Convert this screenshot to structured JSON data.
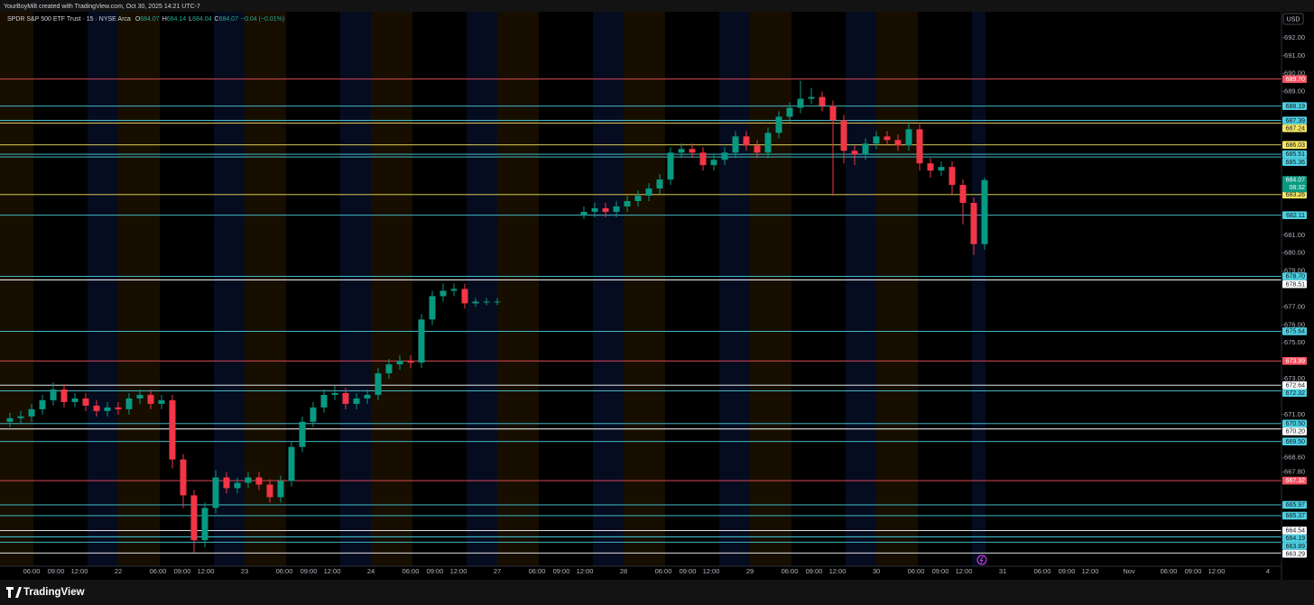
{
  "header": {
    "attribution": "YourBoyMilt created with TradingView.com, Oct 30, 2025 14:21 UTC-7",
    "symbol": "SPDR S&P 500 ETF Trust · 15 · NYSE Arca",
    "quote": [
      {
        "key": "O",
        "value": "684.07"
      },
      {
        "key": "H",
        "value": "684.14"
      },
      {
        "key": "L",
        "value": "684.04"
      },
      {
        "key": "C",
        "value": "684.07"
      }
    ],
    "change": "−0.04 (−0.01%)",
    "currency": "USD"
  },
  "footer": {
    "brand": "TradingView"
  },
  "chart_data": {
    "type": "candlestick",
    "open": [
      670.6,
      670.8,
      670.9,
      671.3,
      671.8,
      672.4,
      671.7,
      671.9,
      671.5,
      671.2,
      671.4,
      671.3,
      671.9,
      672.1,
      671.6,
      671.8,
      668.5,
      666.5,
      664.0,
      665.8,
      667.5,
      666.9,
      667.2,
      667.5,
      667.1,
      666.4,
      667.3,
      669.2,
      670.6,
      671.4,
      672.1,
      672.2,
      671.6,
      671.9,
      672.1,
      673.3,
      673.8,
      674.0,
      673.9,
      676.3,
      677.6,
      677.9,
      678.0,
      677.2,
      677.3,
      677.3,
      null,
      null,
      null,
      null,
      null,
      null,
      null,
      682.1,
      682.3,
      682.5,
      682.3,
      682.6,
      682.9,
      683.2,
      683.6,
      684.1,
      685.6,
      685.8,
      685.6,
      684.9,
      685.2,
      685.6,
      686.5,
      686.0,
      685.6,
      686.7,
      687.6,
      688.1,
      688.6,
      688.7,
      688.2,
      687.4,
      685.7,
      685.5,
      686.1,
      686.5,
      686.3,
      686.0,
      686.9,
      685.0,
      684.6,
      684.8,
      683.8,
      682.8,
      680.5
    ],
    "high": [
      671.1,
      671.2,
      671.6,
      672.1,
      672.8,
      672.7,
      672.2,
      672.2,
      671.8,
      671.7,
      671.7,
      672.2,
      672.4,
      672.4,
      672.1,
      672.1,
      668.8,
      666.8,
      666.1,
      667.9,
      667.8,
      667.5,
      667.8,
      667.8,
      667.4,
      667.6,
      669.5,
      670.9,
      671.7,
      672.4,
      672.6,
      672.5,
      672.2,
      672.4,
      673.6,
      674.1,
      674.3,
      674.3,
      676.6,
      677.9,
      678.3,
      678.3,
      678.3,
      677.5,
      677.5,
      677.5,
      null,
      null,
      null,
      null,
      null,
      null,
      null,
      682.6,
      682.8,
      682.8,
      682.9,
      683.2,
      683.5,
      683.9,
      684.4,
      685.9,
      686.1,
      686.1,
      685.9,
      685.5,
      685.9,
      686.8,
      686.8,
      686.3,
      687.0,
      687.9,
      688.4,
      689.6,
      689.2,
      689.0,
      688.5,
      687.7,
      686.0,
      686.4,
      686.8,
      686.8,
      686.6,
      687.3,
      687.2,
      685.3,
      685.1,
      685.1,
      684.1,
      683.1,
      684.2
    ],
    "low": [
      670.3,
      670.5,
      670.6,
      671.0,
      671.5,
      671.4,
      671.4,
      671.2,
      670.9,
      670.9,
      671.0,
      671.0,
      671.6,
      671.3,
      671.3,
      668.0,
      665.8,
      663.3,
      663.6,
      665.5,
      666.6,
      666.6,
      666.9,
      666.8,
      666.1,
      666.1,
      667.0,
      668.9,
      670.3,
      671.1,
      671.8,
      671.3,
      671.3,
      671.6,
      671.8,
      673.0,
      673.5,
      673.6,
      673.6,
      676.0,
      677.3,
      677.6,
      676.9,
      677.0,
      677.1,
      677.1,
      null,
      null,
      null,
      null,
      null,
      null,
      null,
      681.9,
      682.0,
      682.0,
      682.0,
      682.3,
      682.6,
      682.9,
      683.3,
      683.8,
      685.3,
      685.3,
      684.6,
      684.6,
      684.9,
      685.3,
      685.7,
      685.3,
      685.3,
      686.4,
      687.3,
      687.8,
      688.3,
      687.9,
      683.2,
      685.0,
      684.9,
      685.2,
      685.8,
      686.0,
      685.7,
      685.7,
      684.6,
      684.2,
      684.3,
      683.3,
      681.6,
      679.9,
      680.2
    ],
    "close": [
      670.8,
      670.9,
      671.3,
      671.8,
      672.4,
      671.7,
      671.9,
      671.5,
      671.2,
      671.4,
      671.3,
      671.9,
      672.1,
      671.6,
      671.8,
      668.5,
      666.5,
      664.0,
      665.8,
      667.5,
      666.9,
      667.2,
      667.5,
      667.1,
      666.4,
      667.3,
      669.2,
      670.6,
      671.4,
      672.1,
      672.2,
      671.6,
      671.9,
      672.1,
      673.3,
      673.8,
      674.0,
      673.9,
      676.3,
      677.6,
      677.9,
      678.0,
      677.2,
      677.3,
      677.3,
      677.3,
      null,
      null,
      null,
      null,
      null,
      null,
      null,
      682.3,
      682.5,
      682.3,
      682.6,
      682.9,
      683.2,
      683.6,
      684.1,
      685.6,
      685.8,
      685.6,
      684.9,
      685.2,
      685.6,
      686.5,
      686.0,
      685.6,
      686.7,
      687.6,
      688.1,
      688.6,
      688.7,
      688.2,
      687.4,
      685.7,
      685.5,
      686.1,
      686.5,
      686.3,
      686.0,
      686.9,
      685.0,
      684.6,
      684.8,
      683.8,
      682.8,
      680.5,
      684.07
    ],
    "x_labels": [
      "06:00",
      "09:00",
      "12:00",
      "22",
      "06:00",
      "09:00",
      "12:00",
      "23",
      "06:00",
      "09:00",
      "12:00",
      "24",
      "06:00",
      "09:00",
      "12:00",
      "27",
      "06:00",
      "09:00",
      "12:00",
      "28",
      "06:00",
      "09:00",
      "12:00",
      "29",
      "06:00",
      "09:00",
      "12:00",
      "30",
      "06:00",
      "09:00",
      "12:00",
      "31",
      "06:00",
      "09:00",
      "12:00",
      "Nov",
      "06:00",
      "09:00",
      "12:00",
      "4"
    ],
    "ylim": [
      662.3,
      693.4
    ],
    "yticks": [
      {
        "value": 692,
        "label": "692.00"
      },
      {
        "value": 691,
        "label": "691.00"
      },
      {
        "value": 690,
        "label": "690.00"
      },
      {
        "value": 689,
        "label": "689.00"
      },
      {
        "value": 681,
        "label": "681.00"
      },
      {
        "value": 680,
        "label": "680.00"
      },
      {
        "value": 679,
        "label": "679.00"
      },
      {
        "value": 677,
        "label": "677.00"
      },
      {
        "value": 676,
        "label": "676.00"
      },
      {
        "value": 675,
        "label": "675.00"
      },
      {
        "value": 673,
        "label": "673.00"
      },
      {
        "value": 671,
        "label": "671.00"
      },
      {
        "value": 668.6,
        "label": "668.60"
      },
      {
        "value": 667.8,
        "label": "667.80"
      }
    ],
    "up_color": "#089981",
    "down_color": "#f23645",
    "levels": [
      {
        "value": 689.7,
        "label": "689.70",
        "color": "#f7525f"
      },
      {
        "value": 688.19,
        "label": "688.19",
        "color": "#4dd0e1"
      },
      {
        "value": 687.39,
        "label": "687.39",
        "color": "#4dd0e1"
      },
      {
        "value": 687.24,
        "label": "687.24",
        "color": "#f5e663"
      },
      {
        "value": 686.03,
        "label": "686.03",
        "color": "#f5e663"
      },
      {
        "value": 685.51,
        "label": "685.51",
        "color": "#4dd0e1"
      },
      {
        "value": 685.36,
        "label": "685.36",
        "color": "#4dd0e1"
      },
      {
        "value": 683.26,
        "label": "683.26",
        "color": "#f5e663"
      },
      {
        "value": 682.11,
        "label": "682.11",
        "color": "#4dd0e1"
      },
      {
        "value": 678.7,
        "label": "678.70",
        "color": "#4dd0e1"
      },
      {
        "value": 678.51,
        "label": "678.51",
        "color": "#ffffff"
      },
      {
        "value": 675.64,
        "label": "675.64",
        "color": "#4dd0e1"
      },
      {
        "value": 673.99,
        "label": "673.99",
        "color": "#f7525f"
      },
      {
        "value": 672.64,
        "label": "672.64",
        "color": "#ffffff"
      },
      {
        "value": 672.32,
        "label": "672.32",
        "color": "#4dd0e1"
      },
      {
        "value": 670.5,
        "label": "670.50",
        "color": "#4dd0e1"
      },
      {
        "value": 670.2,
        "label": "670.20",
        "color": "#ffffff"
      },
      {
        "value": 669.5,
        "label": "669.50",
        "color": "#4dd0e1"
      },
      {
        "value": 667.32,
        "label": "667.32",
        "color": "#f7525f"
      },
      {
        "value": 665.97,
        "label": "665.97",
        "color": "#4dd0e1"
      },
      {
        "value": 665.37,
        "label": "665.37",
        "color": "#4dd0e1"
      },
      {
        "value": 664.54,
        "label": "664.54",
        "color": "#ffffff"
      },
      {
        "value": 664.19,
        "label": "664.19",
        "color": "#4dd0e1"
      },
      {
        "value": 663.89,
        "label": "663.89",
        "color": "#4dd0e1"
      },
      {
        "value": 663.29,
        "label": "663.29",
        "color": "#ffffff"
      }
    ],
    "last_price": {
      "value": 684.07,
      "label": "684.07",
      "countdown": "08:32",
      "color": "#089981"
    }
  }
}
